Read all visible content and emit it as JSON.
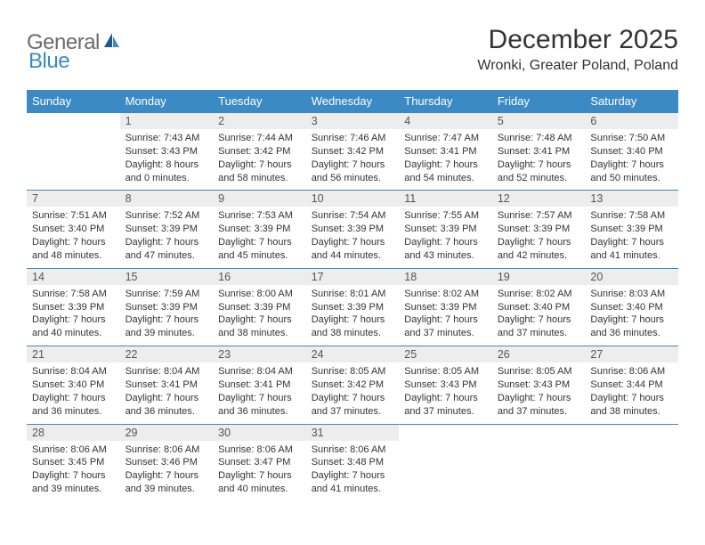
{
  "logo": {
    "general": "General",
    "blue": "Blue"
  },
  "title": "December 2025",
  "location": "Wronki, Greater Poland, Poland",
  "colors": {
    "header_bg": "#3b8ac4",
    "header_text": "#ffffff",
    "daynum_bg": "#ededed",
    "border": "#3b8ac4",
    "body_text": "#333333",
    "logo_gray": "#6b6b6b",
    "logo_blue": "#3b8ac4"
  },
  "weekdays": [
    "Sunday",
    "Monday",
    "Tuesday",
    "Wednesday",
    "Thursday",
    "Friday",
    "Saturday"
  ],
  "weeks": [
    [
      null,
      {
        "n": "1",
        "sr": "7:43 AM",
        "ss": "3:43 PM",
        "dl": "8 hours and 0 minutes."
      },
      {
        "n": "2",
        "sr": "7:44 AM",
        "ss": "3:42 PM",
        "dl": "7 hours and 58 minutes."
      },
      {
        "n": "3",
        "sr": "7:46 AM",
        "ss": "3:42 PM",
        "dl": "7 hours and 56 minutes."
      },
      {
        "n": "4",
        "sr": "7:47 AM",
        "ss": "3:41 PM",
        "dl": "7 hours and 54 minutes."
      },
      {
        "n": "5",
        "sr": "7:48 AM",
        "ss": "3:41 PM",
        "dl": "7 hours and 52 minutes."
      },
      {
        "n": "6",
        "sr": "7:50 AM",
        "ss": "3:40 PM",
        "dl": "7 hours and 50 minutes."
      }
    ],
    [
      {
        "n": "7",
        "sr": "7:51 AM",
        "ss": "3:40 PM",
        "dl": "7 hours and 48 minutes."
      },
      {
        "n": "8",
        "sr": "7:52 AM",
        "ss": "3:39 PM",
        "dl": "7 hours and 47 minutes."
      },
      {
        "n": "9",
        "sr": "7:53 AM",
        "ss": "3:39 PM",
        "dl": "7 hours and 45 minutes."
      },
      {
        "n": "10",
        "sr": "7:54 AM",
        "ss": "3:39 PM",
        "dl": "7 hours and 44 minutes."
      },
      {
        "n": "11",
        "sr": "7:55 AM",
        "ss": "3:39 PM",
        "dl": "7 hours and 43 minutes."
      },
      {
        "n": "12",
        "sr": "7:57 AM",
        "ss": "3:39 PM",
        "dl": "7 hours and 42 minutes."
      },
      {
        "n": "13",
        "sr": "7:58 AM",
        "ss": "3:39 PM",
        "dl": "7 hours and 41 minutes."
      }
    ],
    [
      {
        "n": "14",
        "sr": "7:58 AM",
        "ss": "3:39 PM",
        "dl": "7 hours and 40 minutes."
      },
      {
        "n": "15",
        "sr": "7:59 AM",
        "ss": "3:39 PM",
        "dl": "7 hours and 39 minutes."
      },
      {
        "n": "16",
        "sr": "8:00 AM",
        "ss": "3:39 PM",
        "dl": "7 hours and 38 minutes."
      },
      {
        "n": "17",
        "sr": "8:01 AM",
        "ss": "3:39 PM",
        "dl": "7 hours and 38 minutes."
      },
      {
        "n": "18",
        "sr": "8:02 AM",
        "ss": "3:39 PM",
        "dl": "7 hours and 37 minutes."
      },
      {
        "n": "19",
        "sr": "8:02 AM",
        "ss": "3:40 PM",
        "dl": "7 hours and 37 minutes."
      },
      {
        "n": "20",
        "sr": "8:03 AM",
        "ss": "3:40 PM",
        "dl": "7 hours and 36 minutes."
      }
    ],
    [
      {
        "n": "21",
        "sr": "8:04 AM",
        "ss": "3:40 PM",
        "dl": "7 hours and 36 minutes."
      },
      {
        "n": "22",
        "sr": "8:04 AM",
        "ss": "3:41 PM",
        "dl": "7 hours and 36 minutes."
      },
      {
        "n": "23",
        "sr": "8:04 AM",
        "ss": "3:41 PM",
        "dl": "7 hours and 36 minutes."
      },
      {
        "n": "24",
        "sr": "8:05 AM",
        "ss": "3:42 PM",
        "dl": "7 hours and 37 minutes."
      },
      {
        "n": "25",
        "sr": "8:05 AM",
        "ss": "3:43 PM",
        "dl": "7 hours and 37 minutes."
      },
      {
        "n": "26",
        "sr": "8:05 AM",
        "ss": "3:43 PM",
        "dl": "7 hours and 37 minutes."
      },
      {
        "n": "27",
        "sr": "8:06 AM",
        "ss": "3:44 PM",
        "dl": "7 hours and 38 minutes."
      }
    ],
    [
      {
        "n": "28",
        "sr": "8:06 AM",
        "ss": "3:45 PM",
        "dl": "7 hours and 39 minutes."
      },
      {
        "n": "29",
        "sr": "8:06 AM",
        "ss": "3:46 PM",
        "dl": "7 hours and 39 minutes."
      },
      {
        "n": "30",
        "sr": "8:06 AM",
        "ss": "3:47 PM",
        "dl": "7 hours and 40 minutes."
      },
      {
        "n": "31",
        "sr": "8:06 AM",
        "ss": "3:48 PM",
        "dl": "7 hours and 41 minutes."
      },
      null,
      null,
      null
    ]
  ],
  "labels": {
    "sunrise": "Sunrise:",
    "sunset": "Sunset:",
    "daylight": "Daylight:"
  }
}
